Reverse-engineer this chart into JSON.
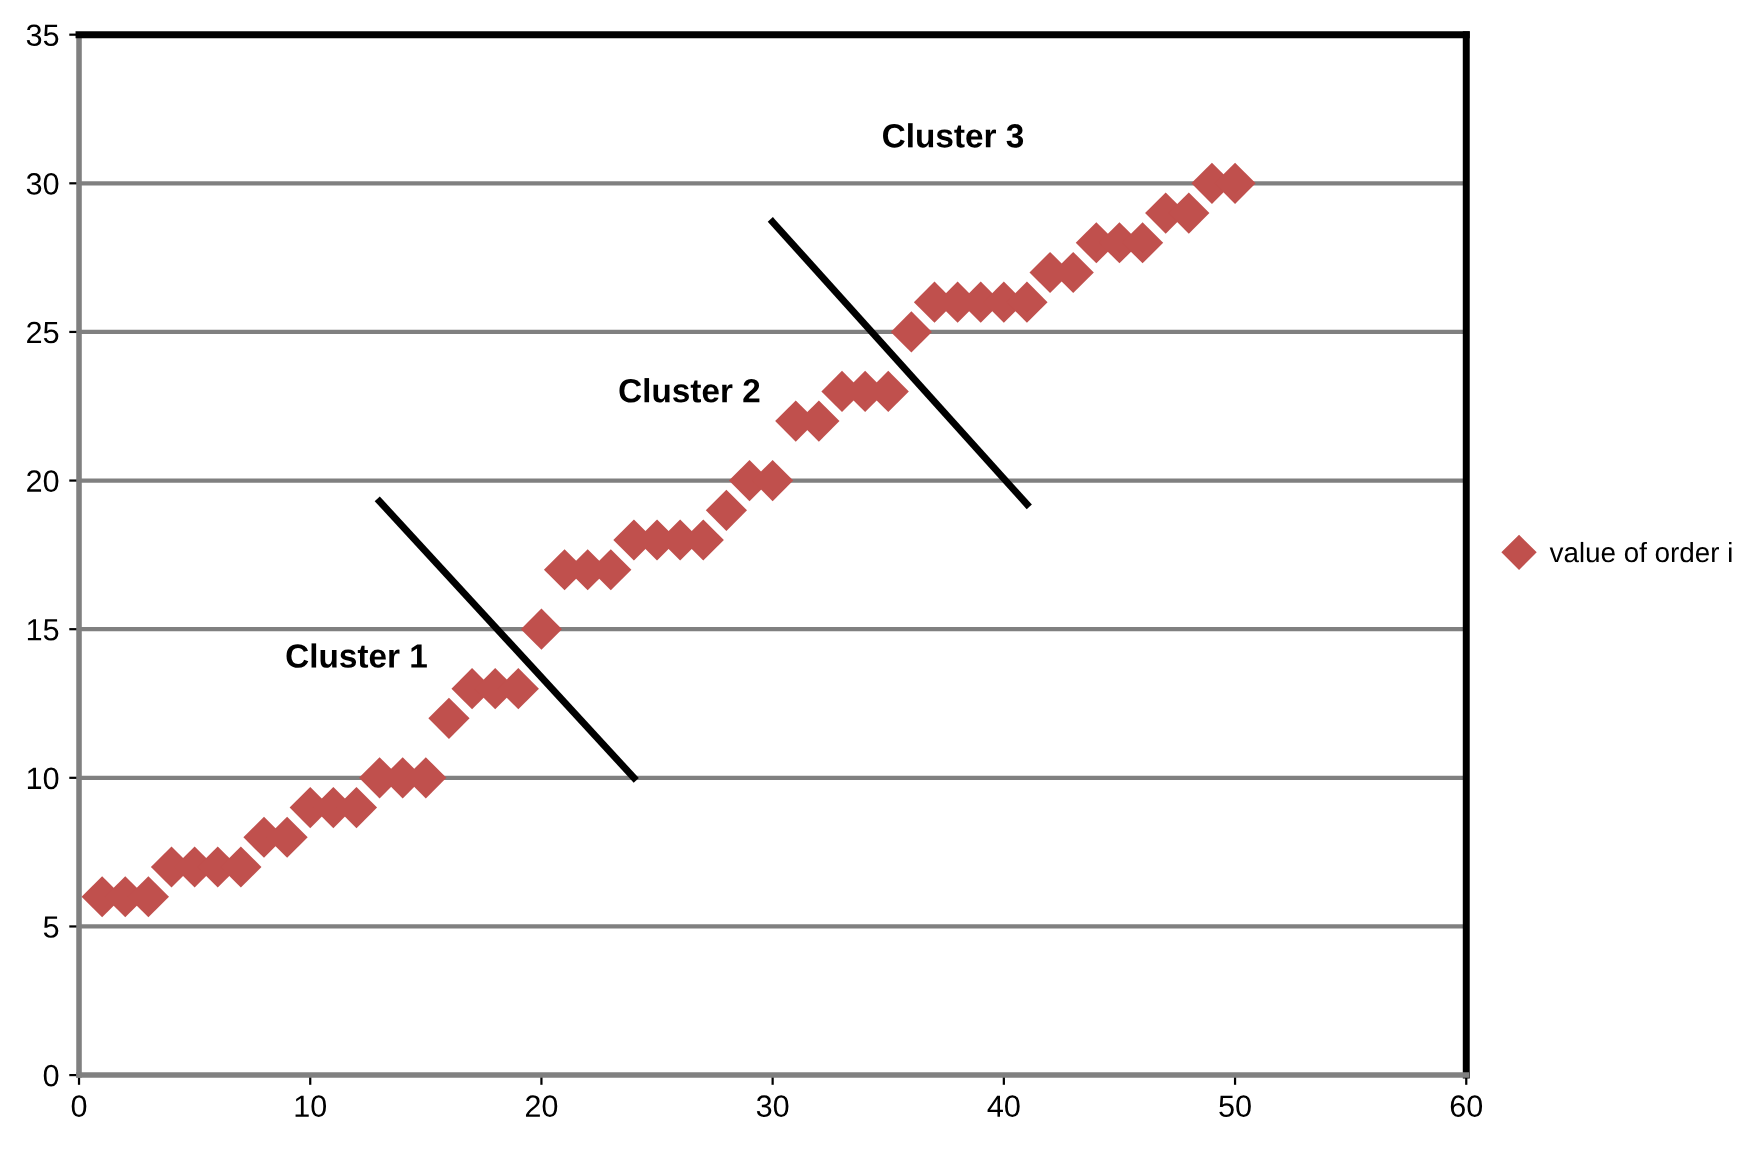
{
  "chart_data": {
    "type": "scatter",
    "x": [
      1,
      2,
      3,
      4,
      5,
      6,
      7,
      8,
      9,
      10,
      11,
      12,
      13,
      14,
      15,
      16,
      17,
      18,
      19,
      20,
      21,
      22,
      23,
      24,
      25,
      26,
      27,
      28,
      29,
      30,
      31,
      32,
      33,
      34,
      35,
      36,
      37,
      38,
      39,
      40,
      41,
      42,
      43,
      44,
      45,
      46,
      47,
      48,
      49,
      50
    ],
    "series": [
      {
        "name": "value of order i",
        "color": "#c0504d",
        "marker": "diamond",
        "values": [
          6,
          6,
          6,
          7,
          7,
          7,
          7,
          8,
          8,
          9,
          9,
          9,
          10,
          10,
          10,
          12,
          13,
          13,
          13,
          15,
          17,
          17,
          17,
          18,
          18,
          18,
          18,
          19,
          20,
          20,
          22,
          22,
          23,
          23,
          23,
          25,
          26,
          26,
          26,
          26,
          26,
          27,
          27,
          28,
          28,
          28,
          29,
          29,
          30,
          30
        ]
      },
      {
        "type": "line",
        "color": "#000000",
        "x": [
          13,
          24
        ],
        "values": [
          19.3,
          10
        ]
      },
      {
        "type": "line",
        "color": "#000000",
        "x": [
          30,
          41
        ],
        "values": [
          28.7,
          19.2
        ]
      }
    ],
    "annotations": [
      "Cluster 1",
      "Cluster 2",
      "Cluster 3"
    ],
    "xlim": [
      0,
      60
    ],
    "xticks": [
      0,
      10,
      20,
      30,
      40,
      50,
      60
    ],
    "ylim": [
      0,
      35
    ],
    "yticks": [
      0,
      5,
      10,
      15,
      20,
      25,
      30,
      35
    ],
    "grid": "y",
    "legend": "right"
  }
}
